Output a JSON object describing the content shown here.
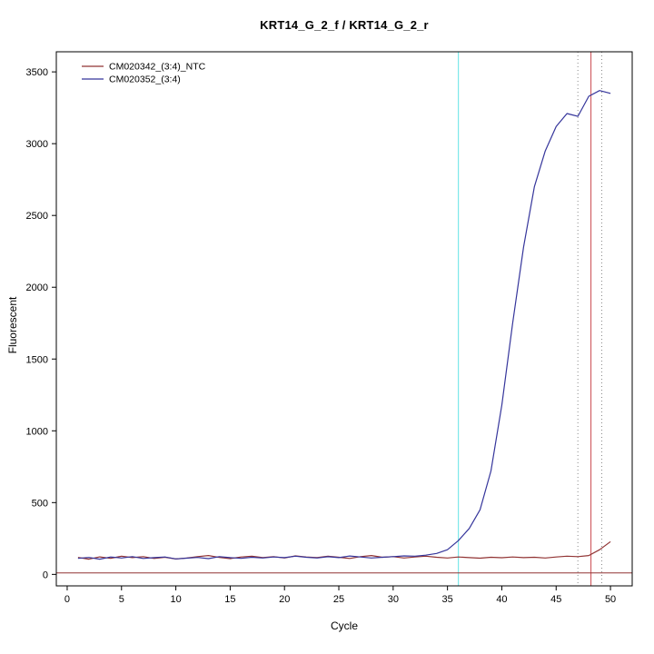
{
  "chart_data": {
    "type": "line",
    "title": "KRT14_G_2_f / KRT14_G_2_r",
    "xlabel": "Cycle",
    "ylabel": "Fluorescent",
    "xlim": [
      -1,
      52
    ],
    "ylim": [
      -80,
      3640
    ],
    "x_ticks": [
      0,
      5,
      10,
      15,
      20,
      25,
      30,
      35,
      40,
      45,
      50
    ],
    "y_ticks": [
      0,
      500,
      1000,
      1500,
      2000,
      2500,
      3000,
      3500
    ],
    "grid": "off",
    "legend_position": "top-left",
    "x": [
      1,
      2,
      3,
      4,
      5,
      6,
      7,
      8,
      9,
      10,
      11,
      12,
      13,
      14,
      15,
      16,
      17,
      18,
      19,
      20,
      21,
      22,
      23,
      24,
      25,
      26,
      27,
      28,
      29,
      30,
      31,
      32,
      33,
      34,
      35,
      36,
      37,
      38,
      39,
      40,
      41,
      42,
      43,
      44,
      45,
      46,
      47,
      48,
      49,
      50
    ],
    "series": [
      {
        "name": "CM020342_(3:4)_NTC",
        "color": "#913333",
        "values": [
          118,
          106,
          122,
          112,
          127,
          117,
          124,
          111,
          119,
          107,
          114,
          124,
          131,
          118,
          110,
          121,
          127,
          117,
          124,
          114,
          129,
          121,
          117,
          127,
          119,
          111,
          124,
          131,
          119,
          124,
          114,
          121,
          127,
          119,
          114,
          121,
          117,
          113,
          119,
          116,
          121,
          117,
          119,
          114,
          121,
          127,
          124,
          131,
          172,
          228
        ]
      },
      {
        "name": "CM020352_(3:4)",
        "color": "#35359b",
        "values": [
          112,
          118,
          106,
          121,
          114,
          124,
          111,
          117,
          121,
          108,
          113,
          118,
          110,
          124,
          117,
          112,
          119,
          114,
          121,
          117,
          127,
          119,
          114,
          123,
          117,
          128,
          121,
          114,
          119,
          124,
          129,
          127,
          134,
          146,
          172,
          235,
          320,
          450,
          720,
          1180,
          1750,
          2280,
          2700,
          2950,
          3120,
          3210,
          3190,
          3330,
          3370,
          3350
        ]
      }
    ],
    "vlines": [
      {
        "x": 36,
        "color": "#7de8ea",
        "style": "solid"
      },
      {
        "x": 48.2,
        "color": "#d26166",
        "style": "solid"
      },
      {
        "x": 47,
        "color": "#8a8a8a",
        "style": "dotted"
      },
      {
        "x": 49.2,
        "color": "#8a8a8a",
        "style": "dotted"
      }
    ],
    "hlines": [
      {
        "y": 10,
        "color": "#913333",
        "style": "solid"
      }
    ]
  }
}
